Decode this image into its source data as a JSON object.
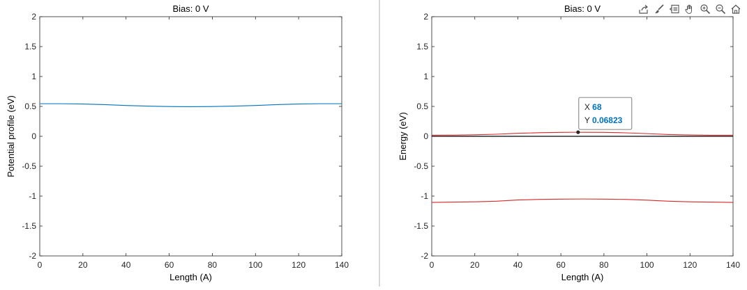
{
  "toolbar": {
    "icons": [
      "export-icon",
      "brush-icon",
      "datatip-icon",
      "pan-icon",
      "zoom-in-icon",
      "zoom-out-icon",
      "home-icon"
    ]
  },
  "colors": {
    "left_series": "#0072bd",
    "right_series": "#d62728",
    "reference_line": "#000000",
    "datatip_value": "#0072bd"
  },
  "chart_data": [
    {
      "type": "line",
      "title": "Bias: 0 V",
      "xlabel": "Length (A)",
      "ylabel": "Potential profile (eV)",
      "xlim": [
        0,
        140
      ],
      "ylim": [
        -2,
        2
      ],
      "xticks": [
        "0",
        "20",
        "40",
        "60",
        "80",
        "100",
        "120",
        "140"
      ],
      "yticks": [
        "-2",
        "-1.5",
        "-1",
        "-0.5",
        "0",
        "0.5",
        "1",
        "1.5",
        "2"
      ],
      "grid": false,
      "series": [
        {
          "x": [
            0,
            10,
            20,
            30,
            40,
            50,
            60,
            70,
            80,
            90,
            100,
            110,
            120,
            130,
            140
          ],
          "y": [
            0.545,
            0.545,
            0.54,
            0.53,
            0.515,
            0.505,
            0.498,
            0.495,
            0.498,
            0.505,
            0.515,
            0.53,
            0.54,
            0.545,
            0.545
          ]
        }
      ]
    },
    {
      "type": "line",
      "title": "Bias: 0 V",
      "xlabel": "Length (A)",
      "ylabel": "Energy (eV)",
      "xlim": [
        0,
        140
      ],
      "ylim": [
        -2,
        2
      ],
      "xticks": [
        "0",
        "20",
        "40",
        "60",
        "80",
        "100",
        "120",
        "140"
      ],
      "yticks": [
        "-2",
        "-1.5",
        "-1",
        "-0.5",
        "0",
        "0.5",
        "1",
        "1.5",
        "2"
      ],
      "grid": false,
      "reference_line_y": 0,
      "series": [
        {
          "x": [
            0,
            10,
            20,
            30,
            40,
            50,
            60,
            68,
            70,
            80,
            90,
            100,
            110,
            120,
            130,
            140
          ],
          "y": [
            0.018,
            0.02,
            0.025,
            0.035,
            0.05,
            0.06,
            0.066,
            0.06823,
            0.068,
            0.066,
            0.058,
            0.045,
            0.03,
            0.022,
            0.018,
            0.018
          ]
        },
        {
          "x": [
            0,
            10,
            20,
            30,
            40,
            50,
            60,
            70,
            80,
            90,
            100,
            110,
            120,
            130,
            140
          ],
          "y": [
            -1.105,
            -1.1,
            -1.095,
            -1.085,
            -1.065,
            -1.055,
            -1.05,
            -1.048,
            -1.05,
            -1.055,
            -1.068,
            -1.085,
            -1.095,
            -1.1,
            -1.105
          ]
        }
      ],
      "datatip": {
        "x": 68,
        "y": 0.06823,
        "x_label": "X",
        "y_label": "Y",
        "x_text": "68",
        "y_text": "0.06823"
      }
    }
  ]
}
